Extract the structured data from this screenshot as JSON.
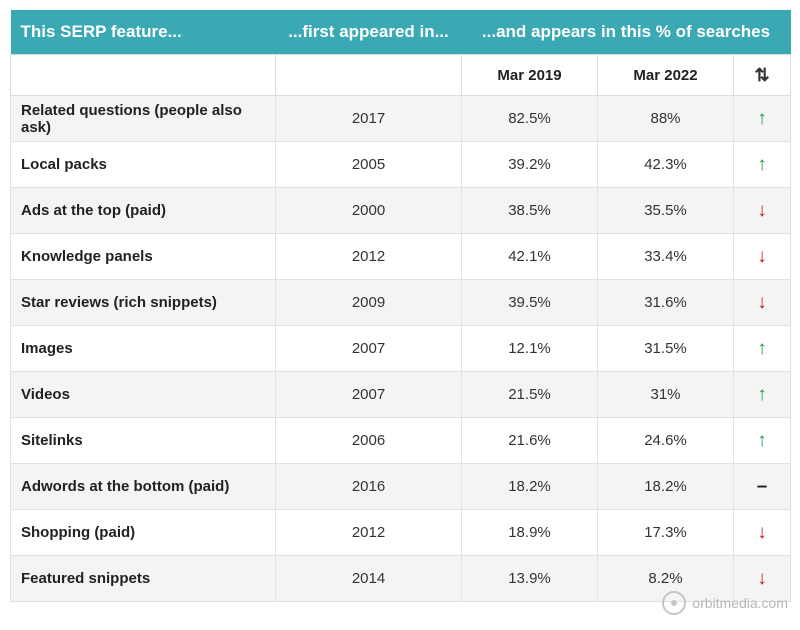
{
  "chart_data": {
    "type": "table",
    "columns": [
      "This SERP feature...",
      "...first appeared in...",
      "...and appears in this % of searches"
    ],
    "subcolumns": [
      "Mar 2019",
      "Mar 2022"
    ],
    "sort_icon": "⇅",
    "rows": [
      {
        "feature": "Related questions (people also ask)",
        "year": "2017",
        "mar2019": "82.5%",
        "mar2022": "88%",
        "trend": "up"
      },
      {
        "feature": "Local packs",
        "year": "2005",
        "mar2019": "39.2%",
        "mar2022": "42.3%",
        "trend": "up"
      },
      {
        "feature": "Ads at the top (paid)",
        "year": "2000",
        "mar2019": "38.5%",
        "mar2022": "35.5%",
        "trend": "down"
      },
      {
        "feature": "Knowledge panels",
        "year": "2012",
        "mar2019": "42.1%",
        "mar2022": "33.4%",
        "trend": "down"
      },
      {
        "feature": "Star reviews (rich snippets)",
        "year": "2009",
        "mar2019": "39.5%",
        "mar2022": "31.6%",
        "trend": "down"
      },
      {
        "feature": "Images",
        "year": "2007",
        "mar2019": "12.1%",
        "mar2022": "31.5%",
        "trend": "up"
      },
      {
        "feature": "Videos",
        "year": "2007",
        "mar2019": "21.5%",
        "mar2022": "31%",
        "trend": "up"
      },
      {
        "feature": "Sitelinks",
        "year": "2006",
        "mar2019": "21.6%",
        "mar2022": "24.6%",
        "trend": "up"
      },
      {
        "feature": "Adwords at the bottom (paid)",
        "year": "2016",
        "mar2019": "18.2%",
        "mar2022": "18.2%",
        "trend": "flat"
      },
      {
        "feature": "Shopping (paid)",
        "year": "2012",
        "mar2019": "18.9%",
        "mar2022": "17.3%",
        "trend": "down"
      },
      {
        "feature": "Featured snippets",
        "year": "2014",
        "mar2019": "13.9%",
        "mar2022": "8.2%",
        "trend": "down"
      }
    ],
    "trend_symbols": {
      "up": "↑",
      "down": "↓",
      "flat": "–"
    },
    "colors": {
      "header": "#3aa9b4",
      "up": "#1e9a3b",
      "down": "#c01a1a"
    }
  },
  "footer": {
    "brand": "orbitmedia.com"
  }
}
